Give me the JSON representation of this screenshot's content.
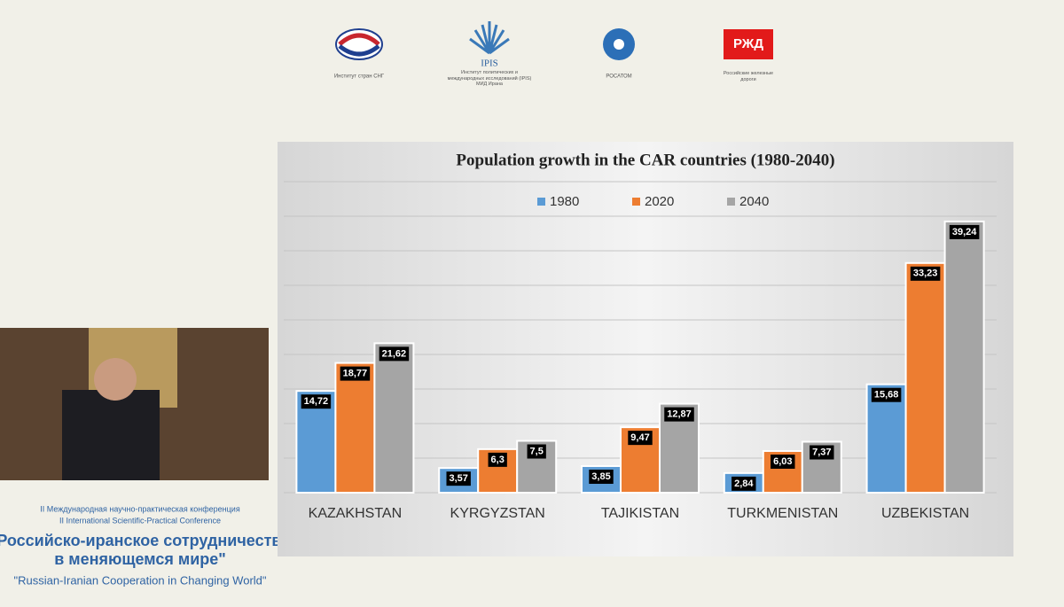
{
  "logos": {
    "isng": "Институт стран СНГ",
    "ipis": "IPIS",
    "ipis_caption": "Институт политических и международных исследований (IPIS) МИД Ирана",
    "rosatom": "РОСАТОМ",
    "rzd": "РЖД",
    "rzd_caption": "Российские железные дороги"
  },
  "conference": {
    "line1": "II Международная научно-практическая конференция",
    "line2": "II International Scientific-Practical Conference",
    "title_ru_1": "\"Российско-иранское сотрудничество",
    "title_ru_2": "в меняющемся мире\"",
    "title_en": "\"Russian-Iranian Cooperation in Changing World\""
  },
  "chart_data": {
    "type": "bar",
    "title": "Population growth in the CAR countries (1980-2040)",
    "categories": [
      "KAZAKHSTAN",
      "KYRGYZSTAN",
      "TAJIKISTAN",
      "TURKMENISTAN",
      "UZBEKISTAN"
    ],
    "series": [
      {
        "name": "1980",
        "color": "#5b9bd5",
        "values": [
          14.72,
          3.57,
          3.85,
          2.84,
          15.68
        ],
        "value_labels": [
          "14,72",
          "3,57",
          "3,85",
          "2,84",
          "15,68"
        ]
      },
      {
        "name": "2020",
        "color": "#ed7d31",
        "values": [
          18.77,
          6.3,
          9.47,
          6.03,
          33.23
        ],
        "value_labels": [
          "18,77",
          "6,3",
          "9,47",
          "6,03",
          "33,23"
        ]
      },
      {
        "name": "2040",
        "color": "#a5a5a5",
        "values": [
          21.62,
          7.5,
          12.87,
          7.37,
          39.24
        ],
        "value_labels": [
          "21,62",
          "7,5",
          "12,87",
          "7,37",
          "39,24"
        ]
      }
    ],
    "ylim": [
      0,
      45
    ],
    "yticks": [
      0,
      5,
      10,
      15,
      20,
      25,
      30,
      35,
      40,
      45
    ],
    "ytick_labels": false,
    "grid": true
  }
}
